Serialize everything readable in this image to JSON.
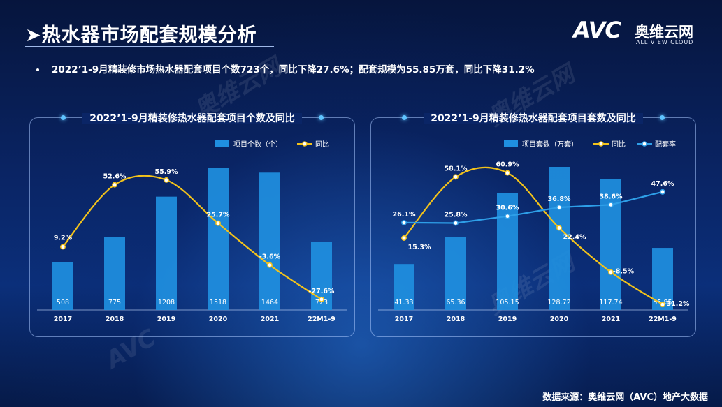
{
  "page": {
    "title": "➤热水器市场配套规模分析",
    "summary": "2022’1-9月精装修市场热水器配套项目个数723个，同比下降27.6%；配套规模为55.85万套，同比下降31.2%",
    "source": "数据来源：奥维云网（AVC）地产大数据"
  },
  "logo": {
    "mark": "AVC",
    "cn": "奥维云网",
    "en": "ALL VIEW CLOUD"
  },
  "watermark": {
    "cn": "奥维云网",
    "mark": "AVC",
    "en": "ALL VIEW CLOUD"
  },
  "colors": {
    "bar": "#1f8fe0",
    "yoy": "#f2c21b",
    "rate": "#2e9fe8",
    "background": "#0a2566"
  },
  "chart_data": [
    {
      "type": "bar",
      "title": "2022’1-9月精装修热水器配套项目个数及同比",
      "categories": [
        "2017",
        "2018",
        "2019",
        "2020",
        "2021",
        "22M1-9"
      ],
      "legend": [
        "项目个数（个）",
        "同比"
      ],
      "legend_position": "top-right",
      "series": [
        {
          "name": "项目个数（个）",
          "type": "bar",
          "values": [
            508,
            775,
            1208,
            1518,
            1464,
            723
          ],
          "labels": [
            "508",
            "775",
            "1208",
            "1518",
            "1464",
            "723"
          ]
        },
        {
          "name": "同比",
          "type": "line",
          "values": [
            9.2,
            52.6,
            55.9,
            25.7,
            -3.6,
            -27.6
          ],
          "labels": [
            "9.2%",
            "52.6%",
            "55.9%",
            "25.7%",
            "-3.6%",
            "-27.6%"
          ]
        }
      ],
      "bar_range": [
        0,
        1600
      ],
      "line_range": [
        -35,
        70
      ],
      "grid": false
    },
    {
      "type": "bar",
      "title": "2022’1-9月精装修热水器配套项目套数及同比",
      "categories": [
        "2017",
        "2018",
        "2019",
        "2020",
        "2021",
        "22M1-9"
      ],
      "legend": [
        "项目套数（万套）",
        "同比",
        "配套率"
      ],
      "legend_position": "top-right",
      "series": [
        {
          "name": "项目套数（万套）",
          "type": "bar",
          "values": [
            41.33,
            65.36,
            105.15,
            128.72,
            117.74,
            55.85
          ],
          "labels": [
            "41.33",
            "65.36",
            "105.15",
            "128.72",
            "117.74",
            "55.85"
          ]
        },
        {
          "name": "同比",
          "type": "line",
          "values": [
            15.3,
            58.1,
            60.9,
            22.4,
            -8.5,
            -31.2
          ],
          "labels": [
            "15.3%",
            "58.1%",
            "60.9%",
            "22.4%",
            "-8.5%",
            "-31.2%"
          ]
        },
        {
          "name": "配套率",
          "type": "line",
          "values": [
            26.1,
            25.8,
            30.6,
            36.8,
            38.6,
            47.6
          ],
          "labels": [
            "26.1%",
            "25.8%",
            "30.6%",
            "36.8%",
            "38.6%",
            "47.6%"
          ]
        }
      ],
      "bar_range": [
        0,
        135
      ],
      "line_range": [
        -35,
        70
      ],
      "grid": false
    }
  ]
}
